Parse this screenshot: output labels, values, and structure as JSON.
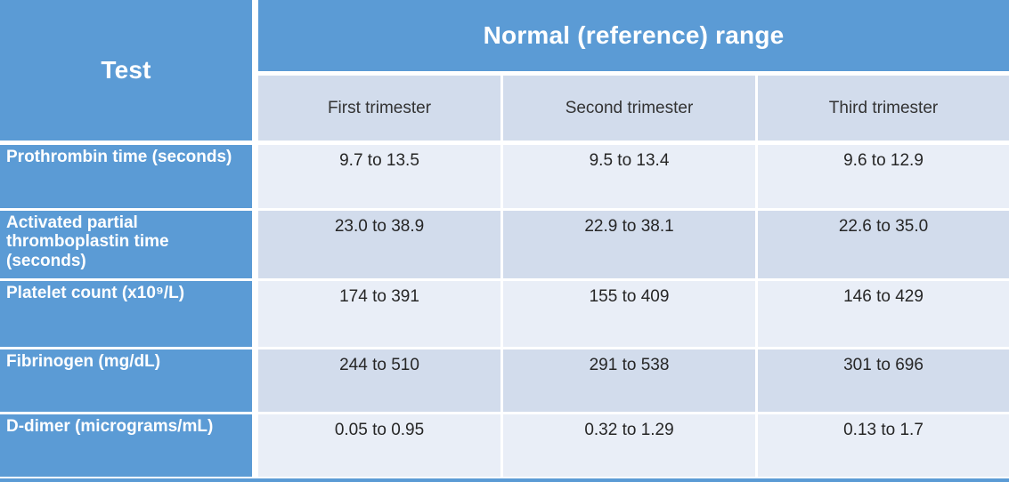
{
  "table": {
    "test_header": "Test",
    "range_header": "Normal (reference) range",
    "trimester_headers": [
      "First trimester",
      "Second trimester",
      "Third trimester"
    ],
    "rows": [
      {
        "test": "Prothrombin time (seconds)",
        "first": "9.7 to 13.5",
        "second": "9.5 to 13.4",
        "third": "9.6 to 12.9"
      },
      {
        "test": "Activated partial thromboplastin time (seconds)",
        "first": "23.0 to 38.9",
        "second": "22.9 to 38.1",
        "third": "22.6 to 35.0"
      },
      {
        "test": "Platelet count (x10⁹/L)",
        "first": "174 to 391",
        "second": "155 to 409",
        "third": "146 to 429"
      },
      {
        "test": "Fibrinogen (mg/dL)",
        "first": "244 to 510",
        "second": "291 to 538",
        "third": "301 to 696"
      },
      {
        "test": "D-dimer (micrograms/mL)",
        "first": "0.05 to 0.95",
        "second": "0.32 to 1.29",
        "third": "0.13 to 1.7"
      }
    ],
    "colors": {
      "header_blue": "#5B9BD5",
      "band_light": "#E9EEF7",
      "band_dark": "#D2DCEC",
      "border_white": "#FFFFFF",
      "header_text": "#FFFFFF",
      "body_text": "#262626"
    }
  }
}
